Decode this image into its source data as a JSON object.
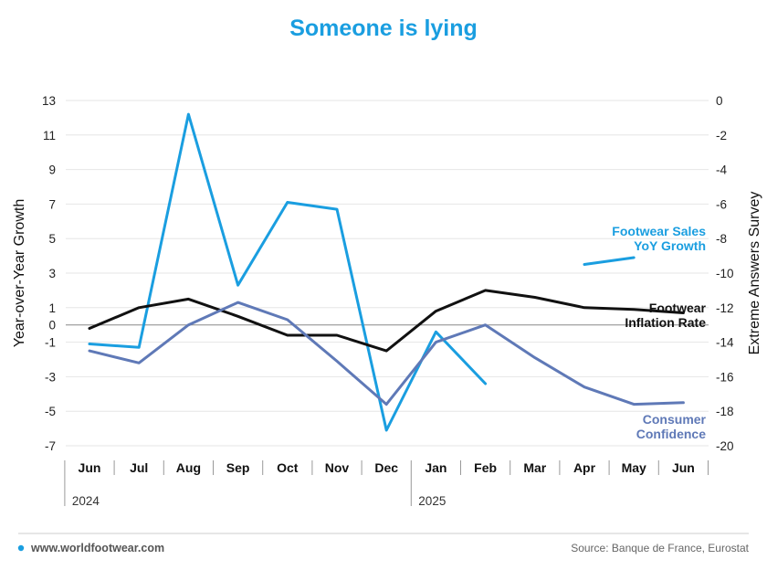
{
  "chart_data": {
    "type": "line",
    "title": "Someone is lying",
    "categories": [
      "Jun",
      "Jul",
      "Aug",
      "Sep",
      "Oct",
      "Nov",
      "Dec",
      "Jan",
      "Feb",
      "Mar",
      "Apr",
      "May",
      "Jun"
    ],
    "year_labels": [
      "2024",
      "2025"
    ],
    "ylabel_left": "Year-over-Year Growth",
    "ylabel_right": "Extreme Answers Survey",
    "ylim_left": [
      -7,
      13
    ],
    "yticks_left": [
      13,
      11,
      9,
      7,
      5,
      3,
      1,
      0,
      -1,
      -3,
      -5,
      -7
    ],
    "ylim_right": [
      -20,
      0
    ],
    "yticks_right": [
      0,
      -2,
      -4,
      -6,
      -8,
      -10,
      -12,
      -14,
      -16,
      -18,
      -20
    ],
    "grid": true,
    "series": [
      {
        "name": "Footwear Sales YoY Growth",
        "label_lines": [
          "Footwear Sales",
          "YoY Growth"
        ],
        "axis": "left",
        "color": "#1a9ee0",
        "values": [
          -1.1,
          -1.3,
          12.2,
          2.3,
          7.1,
          6.7,
          -6.1,
          -0.4,
          -3.4,
          null,
          3.5,
          3.9,
          null
        ]
      },
      {
        "name": "Footwear Inflation Rate",
        "label_lines": [
          "Footwear",
          "Inflation Rate"
        ],
        "axis": "left",
        "color": "#111111",
        "values": [
          -0.2,
          1.0,
          1.5,
          0.5,
          -0.6,
          -0.6,
          -1.5,
          0.8,
          2.0,
          1.6,
          1.0,
          0.9,
          0.7
        ]
      },
      {
        "name": "Consumer Confidence",
        "label_lines": [
          "Consumer",
          "Confidence"
        ],
        "axis": "right",
        "color": "#5f79b7",
        "values": [
          -14.5,
          -15.2,
          -13.0,
          -11.7,
          -12.7,
          -15.1,
          -17.6,
          -14.0,
          -13.0,
          -14.9,
          -16.6,
          -17.6,
          -17.5
        ]
      }
    ]
  },
  "footer": {
    "website": "www.worldfootwear.com",
    "source": "Source: Banque de France, Eurostat",
    "accent_color": "#1a9ee0"
  }
}
